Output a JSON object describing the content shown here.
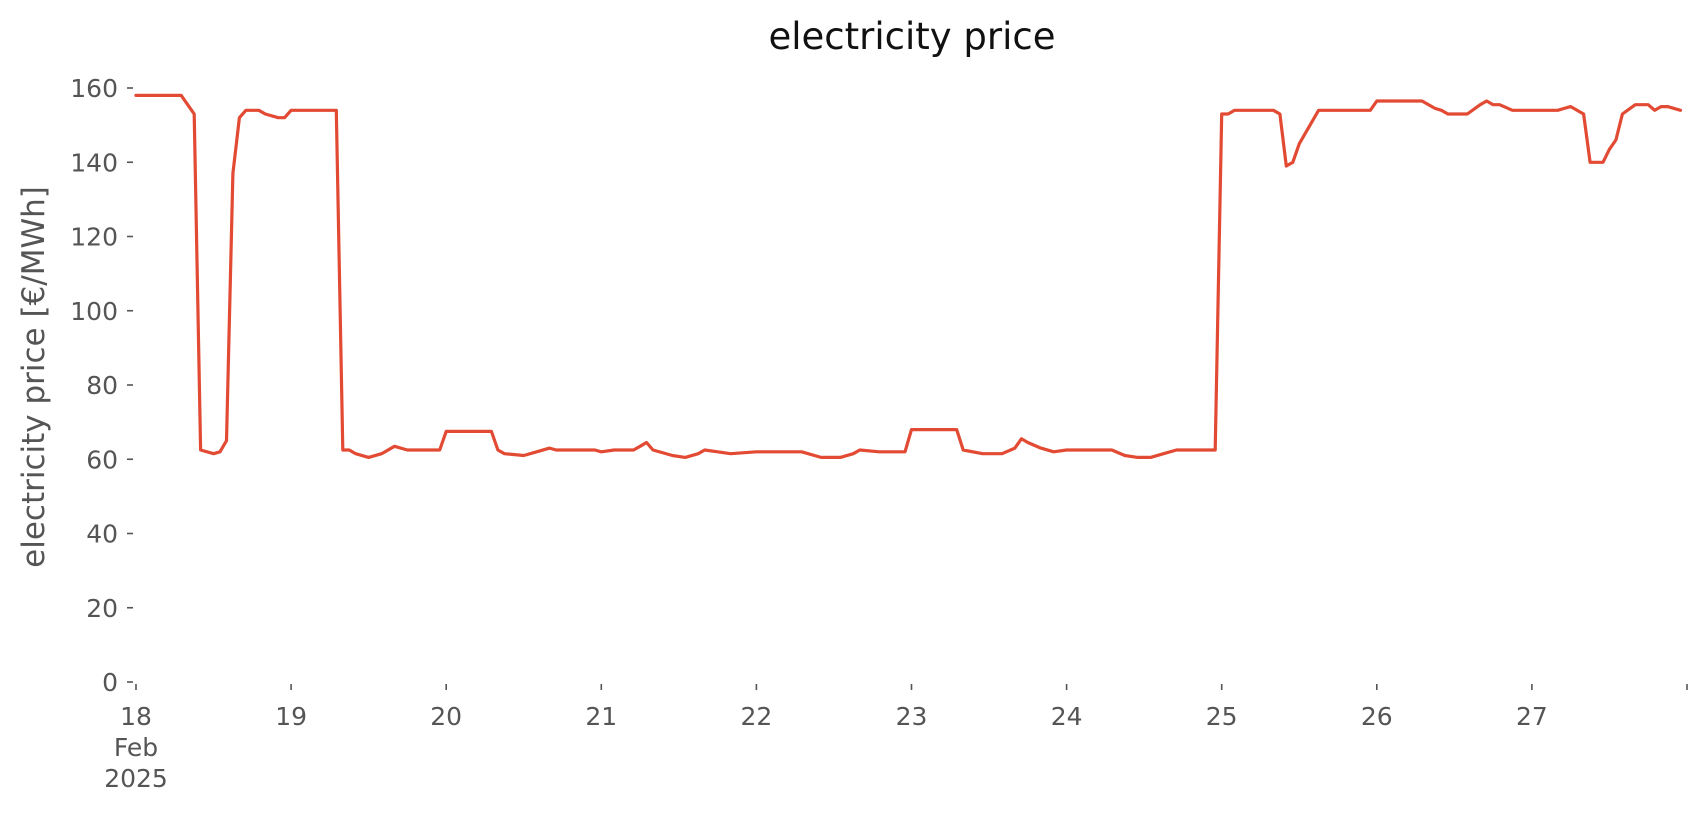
{
  "chart_data": {
    "type": "line",
    "title": "electricity price",
    "xlabel": "",
    "ylabel": "electricity price [€/MWh]",
    "ylim": [
      0,
      160
    ],
    "xlim": [
      "2025-02-18",
      "2025-02-28"
    ],
    "yticks": [
      0,
      20,
      40,
      60,
      80,
      100,
      120,
      140,
      160
    ],
    "xticks": [
      {
        "date": "2025-02-18",
        "label": [
          "18",
          "Feb",
          "2025"
        ]
      },
      {
        "date": "2025-02-19",
        "label": [
          "19"
        ]
      },
      {
        "date": "2025-02-20",
        "label": [
          "20"
        ]
      },
      {
        "date": "2025-02-21",
        "label": [
          "21"
        ]
      },
      {
        "date": "2025-02-22",
        "label": [
          "22"
        ]
      },
      {
        "date": "2025-02-23",
        "label": [
          "23"
        ]
      },
      {
        "date": "2025-02-24",
        "label": [
          "24"
        ]
      },
      {
        "date": "2025-02-25",
        "label": [
          "25"
        ]
      },
      {
        "date": "2025-02-26",
        "label": [
          "26"
        ]
      },
      {
        "date": "2025-02-27",
        "label": [
          "27"
        ]
      },
      {
        "date": "2025-02-28",
        "label": []
      }
    ],
    "grid": false,
    "series": [
      {
        "name": "",
        "color": "#e24a33",
        "points": [
          [
            "2025-02-18 00:00",
            158
          ],
          [
            "2025-02-18 07:00",
            158
          ],
          [
            "2025-02-18 09:00",
            153
          ],
          [
            "2025-02-18 10:00",
            62.5
          ],
          [
            "2025-02-18 12:00",
            61.5
          ],
          [
            "2025-02-18 13:00",
            62
          ],
          [
            "2025-02-18 14:00",
            65
          ],
          [
            "2025-02-18 15:00",
            137
          ],
          [
            "2025-02-18 16:00",
            152
          ],
          [
            "2025-02-18 17:00",
            154
          ],
          [
            "2025-02-18 19:00",
            154
          ],
          [
            "2025-02-18 20:00",
            153
          ],
          [
            "2025-02-18 22:00",
            152
          ],
          [
            "2025-02-18 23:00",
            152
          ],
          [
            "2025-02-19 00:00",
            154
          ],
          [
            "2025-02-19 07:00",
            154
          ],
          [
            "2025-02-19 08:00",
            62.5
          ],
          [
            "2025-02-19 09:00",
            62.5
          ],
          [
            "2025-02-19 10:00",
            61.5
          ],
          [
            "2025-02-19 12:00",
            60.5
          ],
          [
            "2025-02-19 14:00",
            61.5
          ],
          [
            "2025-02-19 16:00",
            63.5
          ],
          [
            "2025-02-19 18:00",
            62.5
          ],
          [
            "2025-02-19 23:00",
            62.5
          ],
          [
            "2025-02-20 00:00",
            67.5
          ],
          [
            "2025-02-20 07:00",
            67.5
          ],
          [
            "2025-02-20 08:00",
            62.5
          ],
          [
            "2025-02-20 09:00",
            61.5
          ],
          [
            "2025-02-20 12:00",
            61
          ],
          [
            "2025-02-20 14:00",
            62
          ],
          [
            "2025-02-20 16:00",
            63
          ],
          [
            "2025-02-20 17:00",
            62.5
          ],
          [
            "2025-02-20 23:00",
            62.5
          ],
          [
            "2025-02-21 00:00",
            62
          ],
          [
            "2025-02-21 02:00",
            62.5
          ],
          [
            "2025-02-21 05:00",
            62.5
          ],
          [
            "2025-02-21 06:00",
            63.5
          ],
          [
            "2025-02-21 07:00",
            64.5
          ],
          [
            "2025-02-21 08:00",
            62.5
          ],
          [
            "2025-02-21 11:00",
            61
          ],
          [
            "2025-02-21 13:00",
            60.5
          ],
          [
            "2025-02-21 15:00",
            61.5
          ],
          [
            "2025-02-21 16:00",
            62.5
          ],
          [
            "2025-02-21 18:00",
            62
          ],
          [
            "2025-02-21 20:00",
            61.5
          ],
          [
            "2025-02-22 00:00",
            62
          ],
          [
            "2025-02-22 07:00",
            62
          ],
          [
            "2025-02-22 10:00",
            60.5
          ],
          [
            "2025-02-22 13:00",
            60.5
          ],
          [
            "2025-02-22 15:00",
            61.5
          ],
          [
            "2025-02-22 16:00",
            62.5
          ],
          [
            "2025-02-22 19:00",
            62
          ],
          [
            "2025-02-22 23:00",
            62
          ],
          [
            "2025-02-23 00:00",
            68
          ],
          [
            "2025-02-23 07:00",
            68
          ],
          [
            "2025-02-23 08:00",
            62.5
          ],
          [
            "2025-02-23 11:00",
            61.5
          ],
          [
            "2025-02-23 14:00",
            61.5
          ],
          [
            "2025-02-23 16:00",
            63
          ],
          [
            "2025-02-23 17:00",
            65.5
          ],
          [
            "2025-02-23 18:00",
            64.5
          ],
          [
            "2025-02-23 20:00",
            63
          ],
          [
            "2025-02-23 22:00",
            62
          ],
          [
            "2025-02-24 00:00",
            62.5
          ],
          [
            "2025-02-24 07:00",
            62.5
          ],
          [
            "2025-02-24 09:00",
            61
          ],
          [
            "2025-02-24 11:00",
            60.5
          ],
          [
            "2025-02-24 13:00",
            60.5
          ],
          [
            "2025-02-24 15:00",
            61.5
          ],
          [
            "2025-02-24 17:00",
            62.5
          ],
          [
            "2025-02-24 23:00",
            62.5
          ],
          [
            "2025-02-25 00:00",
            153
          ],
          [
            "2025-02-25 01:00",
            153
          ],
          [
            "2025-02-25 02:00",
            154
          ],
          [
            "2025-02-25 08:00",
            154
          ],
          [
            "2025-02-25 09:00",
            153
          ],
          [
            "2025-02-25 10:00",
            139
          ],
          [
            "2025-02-25 11:00",
            140
          ],
          [
            "2025-02-25 12:00",
            145
          ],
          [
            "2025-02-25 15:00",
            154
          ],
          [
            "2025-02-25 23:00",
            154
          ],
          [
            "2025-02-26 00:00",
            156.5
          ],
          [
            "2025-02-26 07:00",
            156.5
          ],
          [
            "2025-02-26 09:00",
            154.5
          ],
          [
            "2025-02-26 10:00",
            154
          ],
          [
            "2025-02-26 11:00",
            153
          ],
          [
            "2025-02-26 14:00",
            153
          ],
          [
            "2025-02-26 16:00",
            155.5
          ],
          [
            "2025-02-26 17:00",
            156.5
          ],
          [
            "2025-02-26 18:00",
            155.5
          ],
          [
            "2025-02-26 19:00",
            155.5
          ],
          [
            "2025-02-26 21:00",
            154
          ],
          [
            "2025-02-27 00:00",
            154
          ],
          [
            "2025-02-27 04:00",
            154
          ],
          [
            "2025-02-27 05:00",
            154.5
          ],
          [
            "2025-02-27 06:00",
            155
          ],
          [
            "2025-02-27 08:00",
            153
          ],
          [
            "2025-02-27 09:00",
            140
          ],
          [
            "2025-02-27 11:00",
            140
          ],
          [
            "2025-02-27 12:00",
            143.5
          ],
          [
            "2025-02-27 13:00",
            146
          ],
          [
            "2025-02-27 14:00",
            153
          ],
          [
            "2025-02-27 16:00",
            155.5
          ],
          [
            "2025-02-27 18:00",
            155.5
          ],
          [
            "2025-02-27 19:00",
            154
          ],
          [
            "2025-02-27 20:00",
            155
          ],
          [
            "2025-02-27 21:00",
            155
          ],
          [
            "2025-02-27 23:00",
            154
          ]
        ]
      }
    ]
  }
}
